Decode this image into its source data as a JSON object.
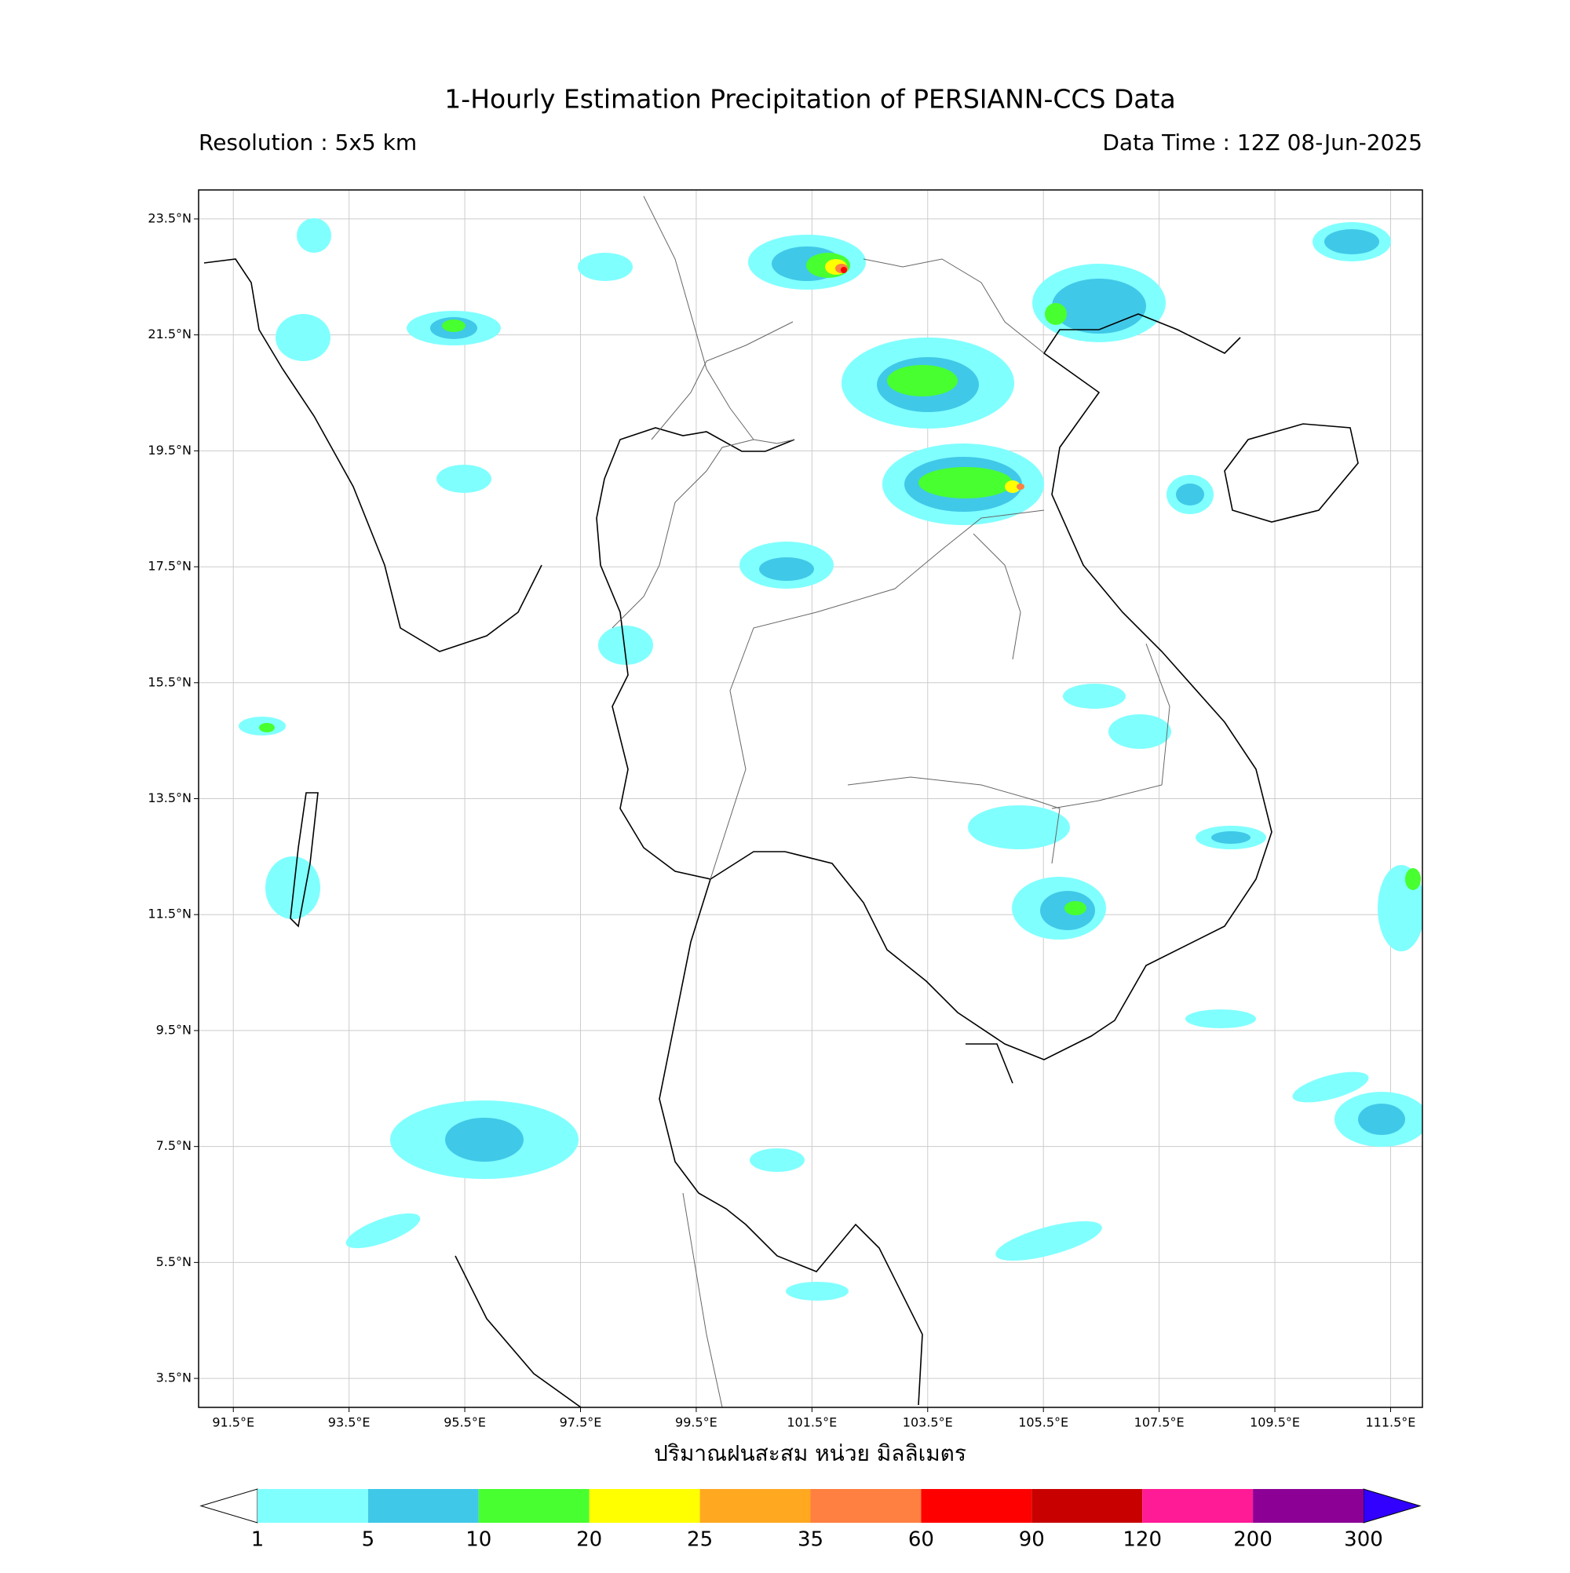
{
  "chart_data": {
    "type": "map",
    "title": "1-Hourly Estimation Precipitation of PERSIANN-CCS Data",
    "subtitle_left": "Resolution : 5x5 km",
    "subtitle_right": "Data Time : 12Z 08-Jun-2025",
    "xlabel": "ปริมาณฝนสะสม หน่วย มิลลิเมตร",
    "xlim": [
      90.9,
      112.05
    ],
    "ylim": [
      3.0,
      24.0
    ],
    "xticks": [
      {
        "value": 91.5,
        "label": "91.5°E"
      },
      {
        "value": 93.5,
        "label": "93.5°E"
      },
      {
        "value": 95.5,
        "label": "95.5°E"
      },
      {
        "value": 97.5,
        "label": "97.5°E"
      },
      {
        "value": 99.5,
        "label": "99.5°E"
      },
      {
        "value": 101.5,
        "label": "101.5°E"
      },
      {
        "value": 103.5,
        "label": "103.5°E"
      },
      {
        "value": 105.5,
        "label": "105.5°E"
      },
      {
        "value": 107.5,
        "label": "107.5°E"
      },
      {
        "value": 109.5,
        "label": "109.5°E"
      },
      {
        "value": 111.5,
        "label": "111.5°E"
      }
    ],
    "yticks": [
      {
        "value": 3.5,
        "label": "3.5°N"
      },
      {
        "value": 5.5,
        "label": "5.5°N"
      },
      {
        "value": 7.5,
        "label": "7.5°N"
      },
      {
        "value": 9.5,
        "label": "9.5°N"
      },
      {
        "value": 11.5,
        "label": "11.5°N"
      },
      {
        "value": 13.5,
        "label": "13.5°N"
      },
      {
        "value": 15.5,
        "label": "15.5°N"
      },
      {
        "value": 17.5,
        "label": "17.5°N"
      },
      {
        "value": 19.5,
        "label": "19.5°N"
      },
      {
        "value": 21.5,
        "label": "21.5°N"
      },
      {
        "value": 23.5,
        "label": "23.5°N"
      }
    ],
    "grid": true,
    "colorbar": {
      "levels": [
        1,
        5,
        10,
        20,
        25,
        35,
        60,
        90,
        120,
        200,
        300
      ],
      "colors": [
        "#80ffff",
        "#40c8e8",
        "#48ff30",
        "#ffff00",
        "#ffa820",
        "#ff8040",
        "#ff0000",
        "#c80000",
        "#ff1a96",
        "#8c0096"
      ],
      "under_color": "#ffffff",
      "over_color": "#3200ff"
    }
  }
}
